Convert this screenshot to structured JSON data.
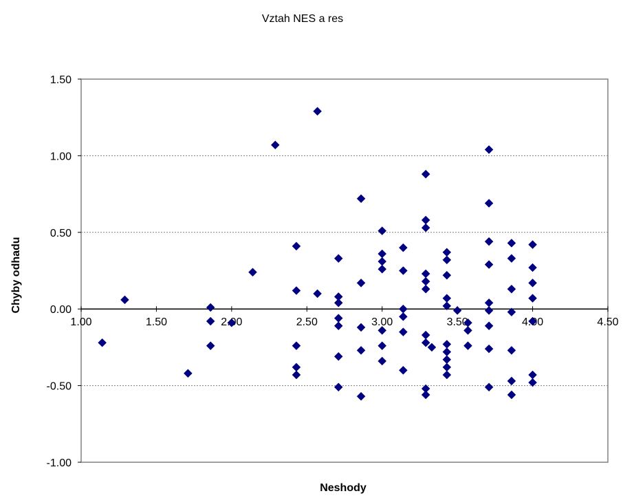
{
  "chart_data": {
    "type": "scatter",
    "title": "Vztah NES a res",
    "xlabel": "Neshody",
    "ylabel": "Chyby odhadu",
    "xlim": [
      1.0,
      4.5
    ],
    "ylim": [
      -1.0,
      1.5
    ],
    "x_ticks": [
      "1.00",
      "1.50",
      "2.00",
      "2.50",
      "3.00",
      "3.50",
      "4.00",
      "4.50"
    ],
    "y_ticks": [
      "1.50",
      "1.00",
      "0.50",
      "0.00",
      "-0.50",
      "-1.00"
    ],
    "grid": "horizontal dashed",
    "marker": "diamond",
    "marker_color": "#000080",
    "series": [
      {
        "points": [
          [
            1.14,
            -0.22
          ],
          [
            1.29,
            0.06
          ],
          [
            1.71,
            -0.42
          ],
          [
            1.86,
            0.01
          ],
          [
            1.86,
            -0.08
          ],
          [
            1.86,
            -0.24
          ],
          [
            2.0,
            -0.09
          ],
          [
            2.14,
            0.24
          ],
          [
            2.29,
            1.07
          ],
          [
            2.43,
            0.41
          ],
          [
            2.43,
            0.12
          ],
          [
            2.43,
            -0.24
          ],
          [
            2.43,
            -0.38
          ],
          [
            2.43,
            -0.43
          ],
          [
            2.57,
            1.29
          ],
          [
            2.57,
            0.1
          ],
          [
            2.71,
            0.33
          ],
          [
            2.71,
            0.08
          ],
          [
            2.71,
            0.04
          ],
          [
            2.71,
            -0.06
          ],
          [
            2.71,
            -0.11
          ],
          [
            2.71,
            -0.31
          ],
          [
            2.71,
            -0.51
          ],
          [
            2.86,
            0.72
          ],
          [
            2.86,
            0.17
          ],
          [
            2.86,
            -0.12
          ],
          [
            2.86,
            -0.27
          ],
          [
            2.86,
            -0.57
          ],
          [
            3.0,
            0.51
          ],
          [
            3.0,
            0.36
          ],
          [
            3.0,
            0.31
          ],
          [
            3.0,
            0.26
          ],
          [
            3.0,
            -0.14
          ],
          [
            3.0,
            -0.24
          ],
          [
            3.0,
            -0.34
          ],
          [
            3.14,
            0.4
          ],
          [
            3.14,
            0.25
          ],
          [
            3.14,
            0.0
          ],
          [
            3.14,
            -0.05
          ],
          [
            3.14,
            -0.15
          ],
          [
            3.14,
            -0.4
          ],
          [
            3.29,
            0.88
          ],
          [
            3.29,
            0.58
          ],
          [
            3.29,
            0.53
          ],
          [
            3.29,
            0.23
          ],
          [
            3.29,
            0.18
          ],
          [
            3.29,
            0.13
          ],
          [
            3.29,
            -0.17
          ],
          [
            3.29,
            -0.22
          ],
          [
            3.29,
            -0.52
          ],
          [
            3.29,
            -0.56
          ],
          [
            3.33,
            -0.25
          ],
          [
            3.43,
            0.37
          ],
          [
            3.43,
            0.32
          ],
          [
            3.43,
            0.22
          ],
          [
            3.43,
            0.07
          ],
          [
            3.43,
            0.02
          ],
          [
            3.43,
            -0.23
          ],
          [
            3.43,
            -0.28
          ],
          [
            3.43,
            -0.33
          ],
          [
            3.43,
            -0.38
          ],
          [
            3.43,
            -0.43
          ],
          [
            3.5,
            -0.01
          ],
          [
            3.57,
            -0.09
          ],
          [
            3.57,
            -0.14
          ],
          [
            3.57,
            -0.24
          ],
          [
            3.71,
            1.04
          ],
          [
            3.71,
            0.69
          ],
          [
            3.71,
            0.44
          ],
          [
            3.71,
            0.29
          ],
          [
            3.71,
            0.04
          ],
          [
            3.71,
            -0.01
          ],
          [
            3.71,
            -0.11
          ],
          [
            3.71,
            -0.26
          ],
          [
            3.71,
            -0.51
          ],
          [
            3.86,
            0.43
          ],
          [
            3.86,
            0.33
          ],
          [
            3.86,
            0.13
          ],
          [
            3.86,
            -0.02
          ],
          [
            3.86,
            -0.27
          ],
          [
            3.86,
            -0.47
          ],
          [
            3.86,
            -0.56
          ],
          [
            4.0,
            0.42
          ],
          [
            4.0,
            0.27
          ],
          [
            4.0,
            0.17
          ],
          [
            4.0,
            0.07
          ],
          [
            4.0,
            -0.08
          ],
          [
            4.0,
            -0.43
          ],
          [
            4.0,
            -0.48
          ]
        ]
      }
    ]
  }
}
